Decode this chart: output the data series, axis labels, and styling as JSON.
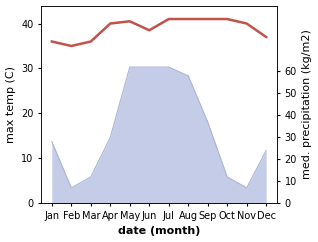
{
  "months": [
    "Jan",
    "Feb",
    "Mar",
    "Apr",
    "May",
    "Jun",
    "Jul",
    "Aug",
    "Sep",
    "Oct",
    "Nov",
    "Dec"
  ],
  "month_indices": [
    0,
    1,
    2,
    3,
    4,
    5,
    6,
    7,
    8,
    9,
    10,
    11
  ],
  "temperature": [
    36,
    35,
    36,
    40,
    40.5,
    38.5,
    41,
    41,
    41,
    41,
    40,
    37
  ],
  "precipitation": [
    28,
    7,
    12,
    30,
    62,
    62,
    62,
    58,
    37,
    12,
    7,
    24
  ],
  "temp_color": "#c0524a",
  "precip_fill_color": "#c5cce8",
  "precip_edge_color": "#aab4d4",
  "xlabel": "date (month)",
  "ylabel_left": "max temp (C)",
  "ylabel_right": "med. precipitation (kg/m2)",
  "ylim_left": [
    0,
    44
  ],
  "ylim_right": [
    0,
    90
  ],
  "yticks_left": [
    0,
    10,
    20,
    30,
    40
  ],
  "yticks_right": [
    0,
    10,
    20,
    30,
    40,
    50,
    60
  ],
  "bg_color": "#ffffff",
  "label_fontsize": 8,
  "tick_fontsize": 7
}
